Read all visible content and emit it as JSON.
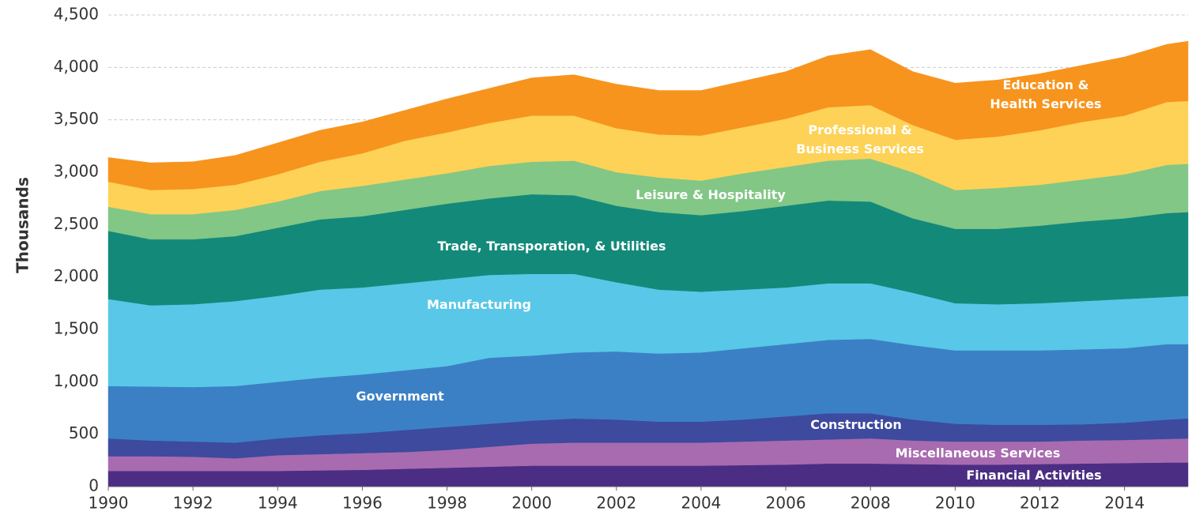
{
  "chart_data": {
    "type": "stacked_area",
    "y_label": "Thousands",
    "x": [
      1990,
      1991,
      1992,
      1993,
      1994,
      1995,
      1996,
      1997,
      1998,
      1999,
      2000,
      2001,
      2002,
      2003,
      2004,
      2005,
      2006,
      2007,
      2008,
      2009,
      2010,
      2011,
      2012,
      2013,
      2014,
      2015,
      2015.5
    ],
    "xlim": [
      1990,
      2015.5
    ],
    "xticks": [
      1990,
      1992,
      1994,
      1996,
      1998,
      2000,
      2002,
      2004,
      2006,
      2008,
      2010,
      2012,
      2014
    ],
    "ylim": [
      0,
      4500
    ],
    "yticks": [
      0,
      500,
      {
        "value": 1000,
        "label": "1,000"
      },
      {
        "value": 1500,
        "label": "1,500"
      },
      {
        "value": 2000,
        "label": "2,000"
      },
      {
        "value": 2500,
        "label": "2,500"
      },
      {
        "value": 3000,
        "label": "3,000"
      },
      {
        "value": 3500,
        "label": "3,500"
      },
      {
        "value": 4000,
        "label": "4,000"
      },
      {
        "value": 4500,
        "label": "4,500"
      }
    ],
    "grid": true,
    "series": [
      {
        "name": "Financial Activities",
        "color": "#4b2e83",
        "values": [
          150,
          150,
          150,
          150,
          150,
          155,
          160,
          170,
          180,
          190,
          200,
          200,
          200,
          200,
          200,
          205,
          210,
          220,
          220,
          215,
          210,
          210,
          215,
          220,
          225,
          230,
          230
        ]
      },
      {
        "name": "Miscellaneous Services",
        "color": "#a86bb0",
        "values": [
          140,
          140,
          135,
          120,
          150,
          155,
          160,
          160,
          170,
          190,
          210,
          220,
          220,
          220,
          220,
          225,
          230,
          230,
          240,
          225,
          220,
          220,
          215,
          220,
          220,
          225,
          230
        ]
      },
      {
        "name": "Construction",
        "color": "#3d4a9e",
        "values": [
          170,
          150,
          145,
          150,
          160,
          180,
          190,
          210,
          220,
          220,
          220,
          230,
          220,
          200,
          200,
          210,
          230,
          250,
          240,
          200,
          170,
          160,
          160,
          155,
          165,
          185,
          190
        ]
      },
      {
        "name": "Government",
        "color": "#3b80c5",
        "values": [
          500,
          515,
          520,
          540,
          540,
          550,
          560,
          570,
          580,
          630,
          620,
          630,
          650,
          650,
          660,
          680,
          690,
          700,
          710,
          710,
          700,
          710,
          710,
          715,
          710,
          720,
          710
        ]
      },
      {
        "name": "Manufacturing",
        "color": "#59c7e8",
        "values": [
          830,
          775,
          790,
          810,
          820,
          840,
          830,
          830,
          830,
          790,
          780,
          750,
          660,
          610,
          580,
          560,
          540,
          540,
          530,
          500,
          450,
          440,
          450,
          460,
          470,
          450,
          460
        ]
      },
      {
        "name": "Trade, Transporation, & Utilities",
        "color": "#13897a",
        "values": [
          650,
          630,
          620,
          620,
          650,
          670,
          680,
          700,
          720,
          730,
          760,
          750,
          730,
          740,
          730,
          750,
          780,
          790,
          780,
          710,
          710,
          720,
          740,
          760,
          770,
          800,
          800
        ]
      },
      {
        "name": "Leisure & Hospitality",
        "color": "#82c785",
        "values": [
          230,
          240,
          240,
          250,
          250,
          270,
          290,
          290,
          290,
          310,
          310,
          330,
          320,
          330,
          330,
          360,
          370,
          380,
          410,
          440,
          370,
          390,
          390,
          400,
          420,
          460,
          460
        ]
      },
      {
        "name": "Professional & Business Services",
        "color": "#fdd257",
        "values": [
          240,
          230,
          240,
          240,
          260,
          280,
          310,
          370,
          390,
          410,
          440,
          430,
          420,
          410,
          430,
          440,
          460,
          510,
          510,
          450,
          480,
          490,
          520,
          550,
          560,
          600,
          600
        ]
      },
      {
        "name": "Education & Health Services",
        "color": "#f7941e",
        "values": [
          230,
          260,
          260,
          280,
          300,
          300,
          300,
          290,
          320,
          330,
          360,
          390,
          420,
          420,
          430,
          440,
          450,
          490,
          530,
          510,
          540,
          540,
          540,
          540,
          560,
          550,
          570
        ]
      }
    ]
  }
}
